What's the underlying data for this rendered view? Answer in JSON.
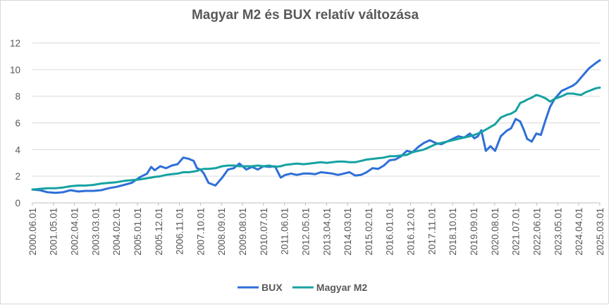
{
  "chart_data": {
    "type": "line",
    "title": "Magyar  M2 és BUX relatív változása",
    "ylim": [
      0,
      12
    ],
    "yticks": [
      "0",
      "2",
      "4",
      "6",
      "8",
      "10",
      "12"
    ],
    "grid": true,
    "legend_position": "bottom",
    "x_labels": [
      "2000.06.01",
      "2001.05.01",
      "2002.04.01",
      "2003.03.01",
      "2004.02.01",
      "2005.01.01",
      "2005.12.01",
      "2006.11.01",
      "2007.10.01",
      "2008.09.01",
      "2009.08.01",
      "2010.07.01",
      "2011.06.01",
      "2012.05.01",
      "2013.04.01",
      "2014.03.01",
      "2015.02.01",
      "2016.01.01",
      "2016.12.01",
      "2017.11.01",
      "2018.10.01",
      "2019.09.01",
      "2020.08.01",
      "2021.07.01",
      "2022.06.01",
      "2023.05.01",
      "2024.04.01",
      "2025.03.01"
    ],
    "x": [
      2000.42,
      2000.75,
      2001.08,
      2001.42,
      2001.75,
      2002.08,
      2002.42,
      2002.75,
      2003.08,
      2003.42,
      2003.75,
      2004.08,
      2004.42,
      2004.75,
      2005.08,
      2005.42,
      2005.6,
      2005.75,
      2006.0,
      2006.25,
      2006.5,
      2006.75,
      2007.0,
      2007.25,
      2007.45,
      2007.6,
      2007.75,
      2007.9,
      2008.1,
      2008.4,
      2008.7,
      2008.95,
      2009.2,
      2009.45,
      2009.75,
      2010.0,
      2010.25,
      2010.5,
      2010.75,
      2011.0,
      2011.25,
      2011.45,
      2011.7,
      2011.95,
      2012.25,
      2012.5,
      2012.75,
      2013.0,
      2013.25,
      2013.5,
      2013.75,
      2014.0,
      2014.25,
      2014.5,
      2014.75,
      2015.0,
      2015.25,
      2015.5,
      2015.75,
      2016.0,
      2016.25,
      2016.5,
      2016.75,
      2017.0,
      2017.25,
      2017.5,
      2017.75,
      2018.0,
      2018.25,
      2018.5,
      2018.75,
      2019.0,
      2019.25,
      2019.5,
      2019.7,
      2019.85,
      2020.0,
      2020.2,
      2020.4,
      2020.6,
      2020.85,
      2021.1,
      2021.3,
      2021.5,
      2021.7,
      2021.85,
      2022.0,
      2022.2,
      2022.4,
      2022.6,
      2022.8,
      2023.0,
      2023.2,
      2023.5,
      2023.75,
      2024.0,
      2024.15,
      2024.35,
      2024.55,
      2024.7,
      2024.85,
      2025.0,
      2025.17
    ],
    "series": [
      {
        "name": "BUX",
        "color": "#2e6fd8",
        "values": [
          1.0,
          0.95,
          0.8,
          0.75,
          0.8,
          0.95,
          0.85,
          0.9,
          0.9,
          0.95,
          1.1,
          1.2,
          1.35,
          1.5,
          1.9,
          2.2,
          2.7,
          2.45,
          2.75,
          2.6,
          2.8,
          2.9,
          3.4,
          3.3,
          3.15,
          2.6,
          2.5,
          2.2,
          1.5,
          1.3,
          1.9,
          2.5,
          2.6,
          2.95,
          2.5,
          2.7,
          2.5,
          2.75,
          2.7,
          2.75,
          1.9,
          2.1,
          2.2,
          2.1,
          2.2,
          2.2,
          2.15,
          2.3,
          2.25,
          2.2,
          2.1,
          2.2,
          2.3,
          2.05,
          2.1,
          2.3,
          2.6,
          2.55,
          2.8,
          3.2,
          3.25,
          3.5,
          3.9,
          3.8,
          4.2,
          4.5,
          4.7,
          4.5,
          4.4,
          4.6,
          4.8,
          5.0,
          4.9,
          5.2,
          4.85,
          5.0,
          5.45,
          3.9,
          4.25,
          3.9,
          5.0,
          5.4,
          5.6,
          6.3,
          6.1,
          5.5,
          4.8,
          4.6,
          5.2,
          5.1,
          6.2,
          7.2,
          7.8,
          8.4,
          8.6,
          8.8,
          9.0,
          9.4,
          9.8,
          10.1,
          10.3,
          10.5,
          10.7
        ]
      },
      {
        "name": "Magyar M2",
        "color": "#17a2a2",
        "values": [
          1.0,
          1.05,
          1.1,
          1.1,
          1.15,
          1.25,
          1.3,
          1.3,
          1.35,
          1.45,
          1.5,
          1.55,
          1.65,
          1.7,
          1.75,
          1.85,
          1.9,
          1.95,
          2.0,
          2.1,
          2.15,
          2.2,
          2.3,
          2.3,
          2.35,
          2.4,
          2.5,
          2.55,
          2.55,
          2.6,
          2.75,
          2.8,
          2.8,
          2.75,
          2.75,
          2.75,
          2.8,
          2.75,
          2.8,
          2.7,
          2.75,
          2.85,
          2.9,
          2.95,
          2.9,
          2.95,
          3.0,
          3.05,
          3.0,
          3.05,
          3.1,
          3.1,
          3.05,
          3.05,
          3.15,
          3.25,
          3.3,
          3.35,
          3.4,
          3.5,
          3.5,
          3.55,
          3.6,
          3.8,
          3.9,
          4.0,
          4.2,
          4.4,
          4.5,
          4.6,
          4.7,
          4.8,
          4.9,
          5.0,
          5.1,
          5.2,
          5.3,
          5.5,
          5.7,
          5.9,
          6.4,
          6.6,
          6.7,
          6.9,
          7.5,
          7.6,
          7.75,
          7.9,
          8.1,
          8.0,
          7.85,
          7.6,
          7.8,
          8.0,
          8.2,
          8.2,
          8.15,
          8.1,
          8.3,
          8.4,
          8.5,
          8.6,
          8.65
        ]
      }
    ]
  }
}
